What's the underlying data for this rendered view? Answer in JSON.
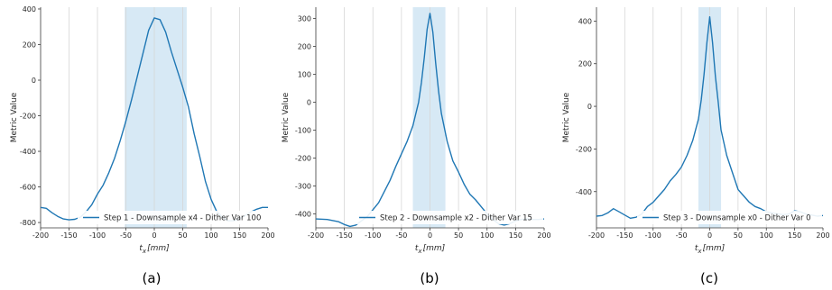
{
  "chart_data": [
    {
      "type": "line",
      "caption": "(a)",
      "xlabel_base": "t",
      "xlabel_sub": "x",
      "xlabel_unit": "[mm]",
      "ylabel": "Metric Value",
      "xlim": [
        -200,
        200
      ],
      "ylim": [
        -830,
        410
      ],
      "xticks": [
        -200,
        -150,
        -100,
        -50,
        0,
        50,
        100,
        150,
        200
      ],
      "yticks": [
        -800,
        -600,
        -400,
        -200,
        0,
        200,
        400
      ],
      "vgrid": [
        -150,
        -100,
        -50,
        0,
        50,
        100,
        150
      ],
      "shade": [
        -52,
        57
      ],
      "shade_color": "#d7e9f5",
      "line_color": "#1f77b4",
      "legend": "Step 1 - Downsample x4 - Dither Var 100",
      "legend_loc": "lower right",
      "series": [
        {
          "x": [
            -200,
            -190,
            -180,
            -170,
            -160,
            -150,
            -140,
            -130,
            -120,
            -110,
            -100,
            -90,
            -80,
            -70,
            -60,
            -50,
            -40,
            -30,
            -20,
            -10,
            0,
            10,
            20,
            30,
            40,
            50,
            60,
            70,
            80,
            90,
            100,
            110,
            120,
            130,
            140,
            150,
            160,
            170,
            180,
            190,
            200
          ],
          "y": [
            -715,
            -720,
            -745,
            -765,
            -780,
            -785,
            -782,
            -770,
            -740,
            -700,
            -640,
            -590,
            -520,
            -440,
            -340,
            -230,
            -110,
            20,
            150,
            280,
            350,
            340,
            270,
            160,
            60,
            -40,
            -150,
            -300,
            -430,
            -570,
            -670,
            -740,
            -770,
            -790,
            -790,
            -780,
            -760,
            -740,
            -725,
            -715,
            -715
          ]
        }
      ]
    },
    {
      "type": "line",
      "caption": "(b)",
      "xlabel_base": "t",
      "xlabel_sub": "x",
      "xlabel_unit": "[mm]",
      "ylabel": "Metric Value",
      "xlim": [
        -200,
        200
      ],
      "ylim": [
        -450,
        340
      ],
      "xticks": [
        -200,
        -150,
        -100,
        -50,
        0,
        50,
        100,
        150,
        200
      ],
      "yticks": [
        -400,
        -300,
        -200,
        -100,
        0,
        100,
        200,
        300
      ],
      "vgrid": [
        -150,
        -100,
        -50,
        0,
        50,
        100,
        150
      ],
      "shade": [
        -30,
        27
      ],
      "shade_color": "#d7e9f5",
      "line_color": "#1f77b4",
      "legend": "Step 2 - Downsample x2 - Dither Var 15",
      "legend_loc": "lower right",
      "series": [
        {
          "x": [
            -200,
            -180,
            -160,
            -150,
            -140,
            -130,
            -120,
            -110,
            -100,
            -90,
            -80,
            -70,
            -60,
            -50,
            -40,
            -30,
            -20,
            -15,
            -10,
            -5,
            0,
            5,
            10,
            15,
            20,
            30,
            40,
            50,
            60,
            70,
            80,
            90,
            100,
            110,
            120,
            130,
            140,
            150,
            160,
            170,
            180,
            190,
            200
          ],
          "y": [
            -418,
            -420,
            -428,
            -438,
            -445,
            -440,
            -425,
            -410,
            -385,
            -360,
            -320,
            -280,
            -230,
            -185,
            -140,
            -85,
            0,
            70,
            160,
            260,
            318,
            250,
            140,
            40,
            -40,
            -140,
            -210,
            -250,
            -295,
            -330,
            -350,
            -375,
            -400,
            -420,
            -435,
            -440,
            -435,
            -425,
            -420,
            -418,
            -420,
            -420,
            -418
          ]
        }
      ]
    },
    {
      "type": "line",
      "caption": "(c)",
      "xlabel_base": "t",
      "xlabel_sub": "x",
      "xlabel_unit": "[mm]",
      "ylabel": "Metric Value",
      "xlim": [
        -200,
        200
      ],
      "ylim": [
        -570,
        465
      ],
      "xticks": [
        -200,
        -150,
        -100,
        -50,
        0,
        50,
        100,
        150,
        200
      ],
      "yticks": [
        -400,
        -200,
        0,
        200,
        400
      ],
      "vgrid": [
        -150,
        -100,
        -50,
        0,
        50,
        100,
        150
      ],
      "shade": [
        -20,
        20
      ],
      "shade_color": "#d7e9f5",
      "line_color": "#1f77b4",
      "legend": "Step 3 - Downsample x0 - Dither Var 0",
      "legend_loc": "lower right",
      "series": [
        {
          "x": [
            -200,
            -190,
            -180,
            -170,
            -160,
            -150,
            -140,
            -130,
            -120,
            -110,
            -100,
            -90,
            -80,
            -70,
            -60,
            -50,
            -40,
            -30,
            -20,
            -15,
            -10,
            -5,
            0,
            5,
            10,
            15,
            20,
            30,
            40,
            50,
            60,
            70,
            80,
            90,
            100,
            110,
            120,
            130,
            140,
            150,
            160,
            170,
            180,
            190,
            200
          ],
          "y": [
            -515,
            -512,
            -500,
            -480,
            -495,
            -510,
            -525,
            -520,
            -505,
            -470,
            -450,
            -420,
            -390,
            -350,
            -320,
            -285,
            -230,
            -160,
            -60,
            30,
            150,
            300,
            420,
            300,
            140,
            20,
            -110,
            -230,
            -310,
            -390,
            -420,
            -450,
            -470,
            -480,
            -495,
            -500,
            -505,
            -508,
            -505,
            -490,
            -495,
            -505,
            -510,
            -515,
            -512
          ]
        }
      ]
    }
  ]
}
